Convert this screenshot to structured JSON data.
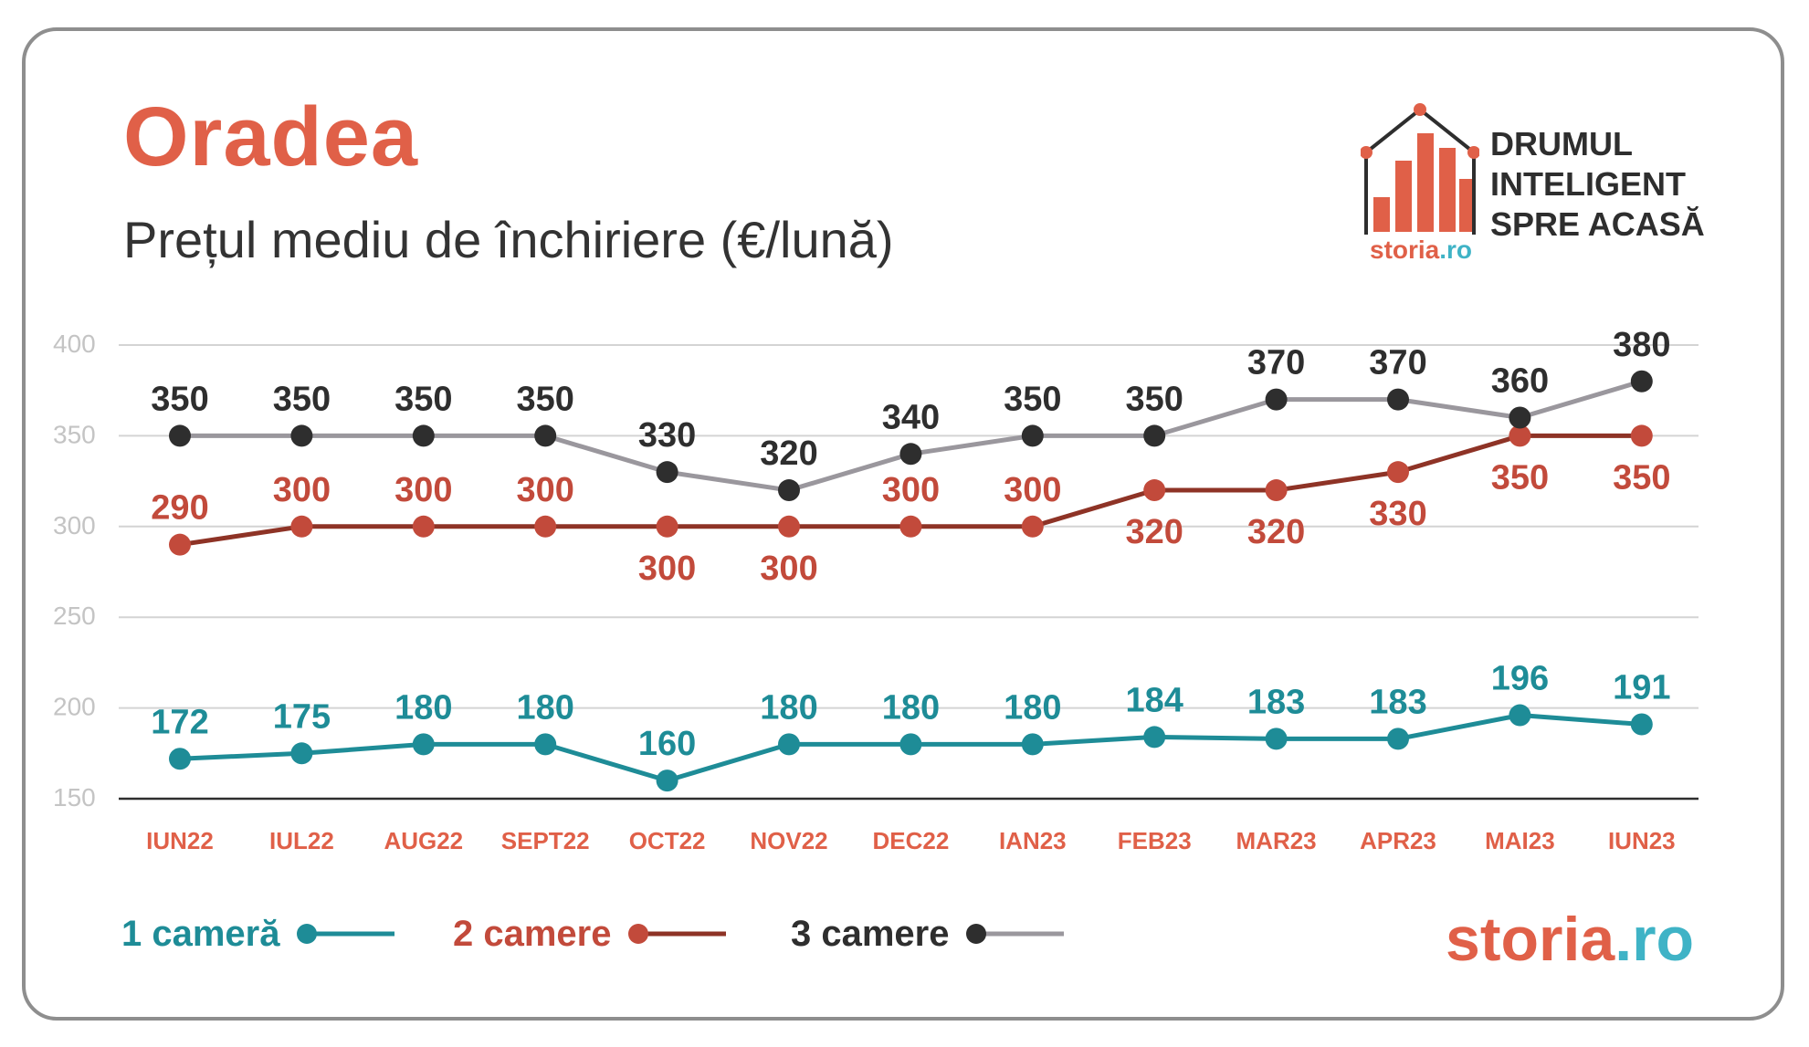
{
  "header": {
    "title": "Oradea",
    "subtitle": "Prețul mediu de închiriere (€/lună)"
  },
  "logo": {
    "lines": [
      "DRUMUL",
      "INTELIGENT",
      "SPRE ACASĂ"
    ],
    "brand_part1": "storia",
    "brand_part2": ".ro"
  },
  "footer_brand": {
    "part1": "storia",
    "part2": ".ro"
  },
  "colors": {
    "accent": "#e06048",
    "teal": "#1e8c97",
    "red": "#c24a3b",
    "dark_red_line": "#8e3326",
    "dark": "#2e2e2e",
    "gray_line": "#9a979d",
    "brand_blue": "#3fb3c6"
  },
  "legend": [
    {
      "label": "1 cameră",
      "color": "#1e8c97",
      "line": "#1e8c97"
    },
    {
      "label": "2 camere",
      "color": "#c24a3b",
      "line": "#8e3326"
    },
    {
      "label": "3 camere",
      "color": "#2e2e2e",
      "line": "#9a979d"
    }
  ],
  "chart_data": {
    "type": "line",
    "title": "Prețul mediu de închiriere (€/lună)",
    "categories": [
      "IUN22",
      "IUL22",
      "AUG22",
      "SEPT22",
      "OCT22",
      "NOV22",
      "DEC22",
      "IAN23",
      "FEB23",
      "MAR23",
      "APR23",
      "MAI23",
      "IUN23"
    ],
    "yticks": [
      150,
      200,
      250,
      300,
      350,
      400
    ],
    "ylim": [
      150,
      400
    ],
    "grid": true,
    "legend_position": "bottom-left",
    "series": [
      {
        "name": "1 cameră",
        "values": [
          172,
          175,
          180,
          180,
          160,
          180,
          180,
          180,
          184,
          183,
          183,
          196,
          191
        ]
      },
      {
        "name": "2 camere",
        "values": [
          290,
          300,
          300,
          300,
          300,
          300,
          300,
          300,
          320,
          320,
          330,
          350,
          350
        ]
      },
      {
        "name": "3 camere",
        "values": [
          350,
          350,
          350,
          350,
          330,
          320,
          340,
          350,
          350,
          370,
          370,
          360,
          380
        ]
      }
    ]
  }
}
